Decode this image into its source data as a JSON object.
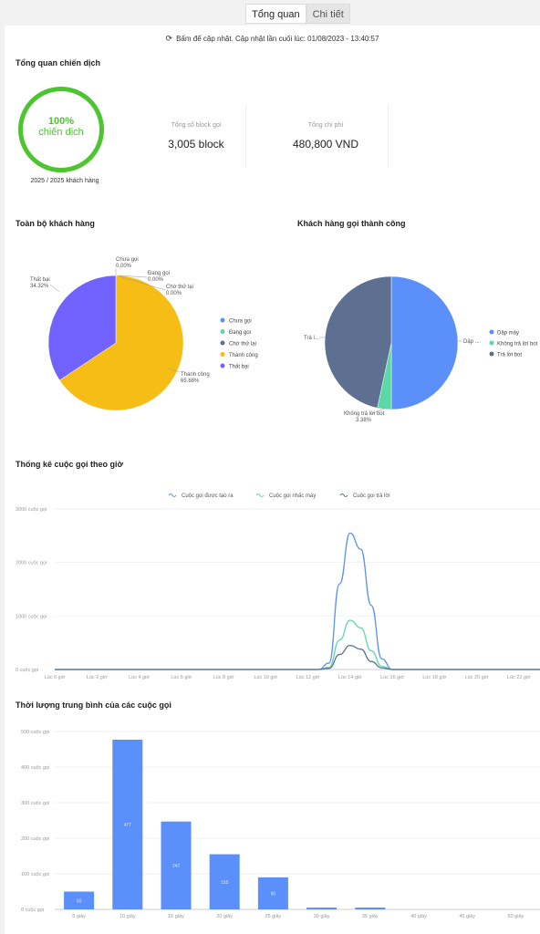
{
  "tabs": [
    {
      "label": "Tổng quan",
      "active": true
    },
    {
      "label": "Chi tiết",
      "active": false
    }
  ],
  "refresh_text": "Bấm để cập nhật. Cập nhật lần cuối lúc: 01/08/2023 - 13:40:57",
  "overview": {
    "title": "Tổng quan chiến dịch",
    "progress_percent": "100%",
    "progress_label": "chiến dịch",
    "progress_sub": "2025 / 2025 khách hàng",
    "stats": [
      {
        "label": "Tổng số block gọi",
        "value": "3,005 block"
      },
      {
        "label": "Tổng chi phí",
        "value": "480,800 VND"
      }
    ]
  },
  "colors": {
    "accent_green": "#4cc52f",
    "blue": "#5b8ff9",
    "teal": "#5ad8a6",
    "slate": "#5d7092",
    "yellow": "#f6bd16",
    "purple": "#7262fd"
  },
  "chart_data": [
    {
      "type": "pie",
      "title": "Toàn bộ khách hàng",
      "legend_position": "right",
      "slices": [
        {
          "name": "Chưa gọi",
          "value": 0.0,
          "label": "0.00%",
          "color": "#5b8ff9"
        },
        {
          "name": "Đang gọi",
          "value": 0.0,
          "label": "0.00%",
          "color": "#5ad8a6"
        },
        {
          "name": "Chờ thử lại",
          "value": 0.0,
          "label": "0.00%",
          "color": "#5d7092"
        },
        {
          "name": "Thành công",
          "value": 65.68,
          "label": "65.68%",
          "color": "#f6bd16"
        },
        {
          "name": "Thất bại",
          "value": 34.32,
          "label": "34.32%",
          "color": "#7262fd"
        }
      ]
    },
    {
      "type": "pie",
      "title": "Khách hàng gọi thành công",
      "legend_position": "right",
      "slices": [
        {
          "name": "Dập máy",
          "short": "Dập ...",
          "value": 50.0,
          "label": "",
          "color": "#5b8ff9"
        },
        {
          "name": "Không trả lời bot",
          "value": 3.38,
          "label": "3.38%",
          "color": "#5ad8a6"
        },
        {
          "name": "Trả lời bot",
          "short": "Trả l...",
          "value": 46.62,
          "label": "",
          "color": "#5d7092"
        }
      ]
    },
    {
      "type": "line",
      "title": "Thống kê cuộc gọi theo giờ",
      "legend_position": "top",
      "y_ticks": [
        "0 cuộc gọi",
        "1000 cuộc gọi",
        "2000 cuộc gọi",
        "3000 cuộc gọi"
      ],
      "ylim": [
        0,
        3000
      ],
      "x_ticks": [
        "Lúc 0 giờ",
        "Lúc 2 giờ",
        "Lúc 4 giờ",
        "Lúc 6 giờ",
        "Lúc 8 giờ",
        "Lúc 10 giờ",
        "Lúc 12 giờ",
        "Lúc 14 giờ",
        "Lúc 16 giờ",
        "Lúc 18 giờ",
        "Lúc 20 giờ",
        "Lúc 22 giờ"
      ],
      "xlim": [
        0,
        23
      ],
      "series": [
        {
          "name": "Cuộc gọi được tạo ra",
          "color": "#5b8ff9",
          "points": [
            [
              12.5,
              0
            ],
            [
              13,
              120
            ],
            [
              13.5,
              1600
            ],
            [
              14,
              2550
            ],
            [
              14.5,
              2250
            ],
            [
              15,
              1200
            ],
            [
              15.5,
              200
            ],
            [
              16,
              0
            ]
          ]
        },
        {
          "name": "Cuộc gọi nhấc máy",
          "color": "#5ad8a6",
          "points": [
            [
              12.5,
              0
            ],
            [
              13,
              40
            ],
            [
              13.5,
              550
            ],
            [
              14,
              920
            ],
            [
              14.5,
              780
            ],
            [
              15,
              350
            ],
            [
              15.5,
              60
            ],
            [
              16,
              0
            ]
          ]
        },
        {
          "name": "Cuộc gọi trả lời",
          "color": "#5d7092",
          "points": [
            [
              12.5,
              0
            ],
            [
              13,
              20
            ],
            [
              13.5,
              280
            ],
            [
              14,
              450
            ],
            [
              14.5,
              380
            ],
            [
              15,
              150
            ],
            [
              15.5,
              30
            ],
            [
              16,
              0
            ]
          ]
        }
      ]
    },
    {
      "type": "bar",
      "title": "Thời lượng trung bình của các cuộc gọi",
      "y_ticks": [
        "0 cuộc gọi",
        "100 cuộc gọi",
        "200 cuộc gọi",
        "300 cuộc gọi",
        "400 cuộc gọi",
        "500 cuộc gọi"
      ],
      "ylim": [
        0,
        500
      ],
      "categories": [
        "5 giây",
        "10 giây",
        "15 giây",
        "20 giây",
        "25 giây",
        "30 giây",
        "35 giây",
        "40 giây",
        "45 giây",
        "50 giây"
      ],
      "values": [
        50,
        477,
        247,
        155,
        90,
        5,
        5,
        0,
        0,
        0
      ],
      "value_labels": [
        "50",
        "477",
        "247",
        "155",
        "90",
        "",
        "",
        "",
        "",
        ""
      ],
      "color": "#5b8ff9"
    }
  ]
}
